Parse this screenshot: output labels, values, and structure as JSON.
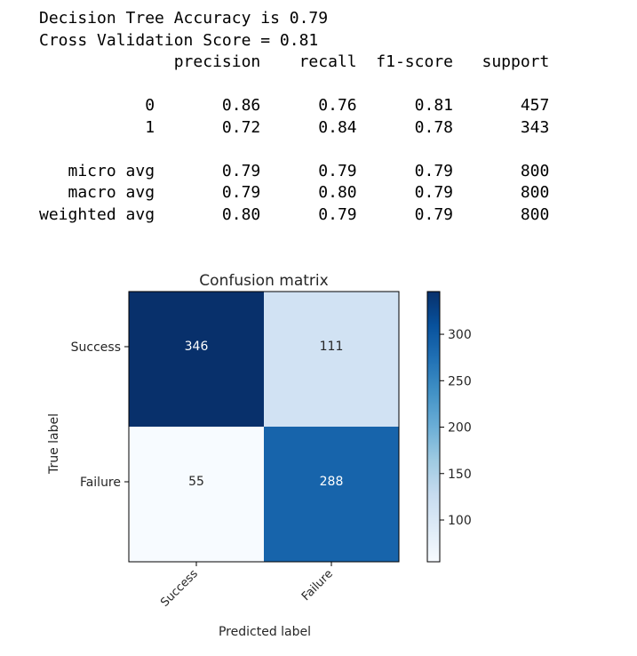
{
  "report": {
    "accuracy_line": "Decision Tree Accuracy is 0.79",
    "cv_line": "Cross Validation Score = 0.81",
    "columns": [
      "precision",
      "recall",
      "f1-score",
      "support"
    ],
    "rows": [
      {
        "label": "0",
        "precision": "0.86",
        "recall": "0.76",
        "f1": "0.81",
        "support": "457"
      },
      {
        "label": "1",
        "precision": "0.72",
        "recall": "0.84",
        "f1": "0.78",
        "support": "343"
      },
      {
        "label": "micro avg",
        "precision": "0.79",
        "recall": "0.79",
        "f1": "0.79",
        "support": "800"
      },
      {
        "label": "macro avg",
        "precision": "0.79",
        "recall": "0.80",
        "f1": "0.79",
        "support": "800"
      },
      {
        "label": "weighted avg",
        "precision": "0.80",
        "recall": "0.79",
        "f1": "0.79",
        "support": "800"
      }
    ]
  },
  "chart_data": {
    "type": "heatmap",
    "title": "Confusion matrix",
    "xlabel": "Predicted label",
    "ylabel": "True label",
    "x_categories": [
      "Success",
      "Failure"
    ],
    "y_categories": [
      "Success",
      "Failure"
    ],
    "values": [
      [
        346,
        111
      ],
      [
        55,
        288
      ]
    ],
    "colormap": "Blues",
    "color_min": 55,
    "color_max": 346,
    "colorbar_ticks": [
      100,
      150,
      200,
      250,
      300
    ],
    "grid": false
  }
}
